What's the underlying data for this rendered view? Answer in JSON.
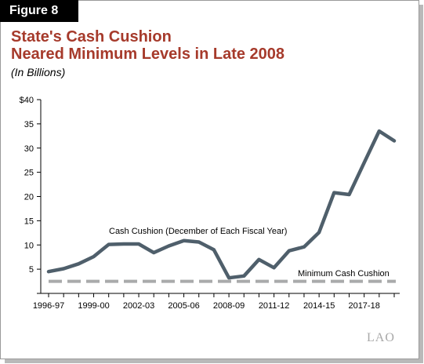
{
  "figure_label": "Figure 8",
  "title_line1": "State's Cash Cushion",
  "title_line2": "Neared Minimum Levels in Late 2008",
  "subtitle": "(In Billions)",
  "logo_text": "LAO",
  "colors": {
    "title": "#a63a2b",
    "series": "#4f5f6b",
    "minimum": "#a9aaab"
  },
  "chart_data": {
    "type": "line",
    "ylim": [
      0,
      40
    ],
    "yticks": [
      "",
      "5",
      "10",
      "15",
      "20",
      "25",
      "30",
      "35",
      "$40"
    ],
    "ytick_values": [
      0,
      5,
      10,
      15,
      20,
      25,
      30,
      35,
      40
    ],
    "xtick_labels": [
      "1996-97",
      "1999-00",
      "2002-03",
      "2005-06",
      "2008-09",
      "2011-12",
      "2014-15",
      "2017-18"
    ],
    "xtick_indices": [
      0,
      3,
      6,
      9,
      12,
      15,
      18,
      21
    ],
    "x": [
      "1996-97",
      "1997-98",
      "1998-99",
      "1999-00",
      "2000-01",
      "2001-02",
      "2002-03",
      "2003-04",
      "2004-05",
      "2005-06",
      "2006-07",
      "2007-08",
      "2008-09",
      "2009-10",
      "2010-11",
      "2011-12",
      "2012-13",
      "2013-14",
      "2014-15",
      "2015-16",
      "2016-17",
      "2017-18",
      "2018-19",
      "2019-20"
    ],
    "series": [
      {
        "name": "Cash Cushion (December of Each Fiscal Year)",
        "values": [
          4.5,
          5.1,
          6.1,
          7.6,
          10.1,
          10.2,
          10.2,
          8.4,
          9.8,
          10.9,
          10.6,
          9.0,
          3.2,
          3.6,
          7.0,
          5.3,
          8.8,
          9.6,
          12.6,
          20.8,
          20.4,
          27.0,
          33.5,
          31.5
        ]
      },
      {
        "name": "Minimum Cash Cushion",
        "values": [
          2.5,
          2.5,
          2.5,
          2.5,
          2.5,
          2.5,
          2.5,
          2.5,
          2.5,
          2.5,
          2.5,
          2.5,
          2.5,
          2.5,
          2.5,
          2.5,
          2.5,
          2.5,
          2.5,
          2.5,
          2.5,
          2.5,
          2.5,
          2.5
        ]
      }
    ]
  }
}
